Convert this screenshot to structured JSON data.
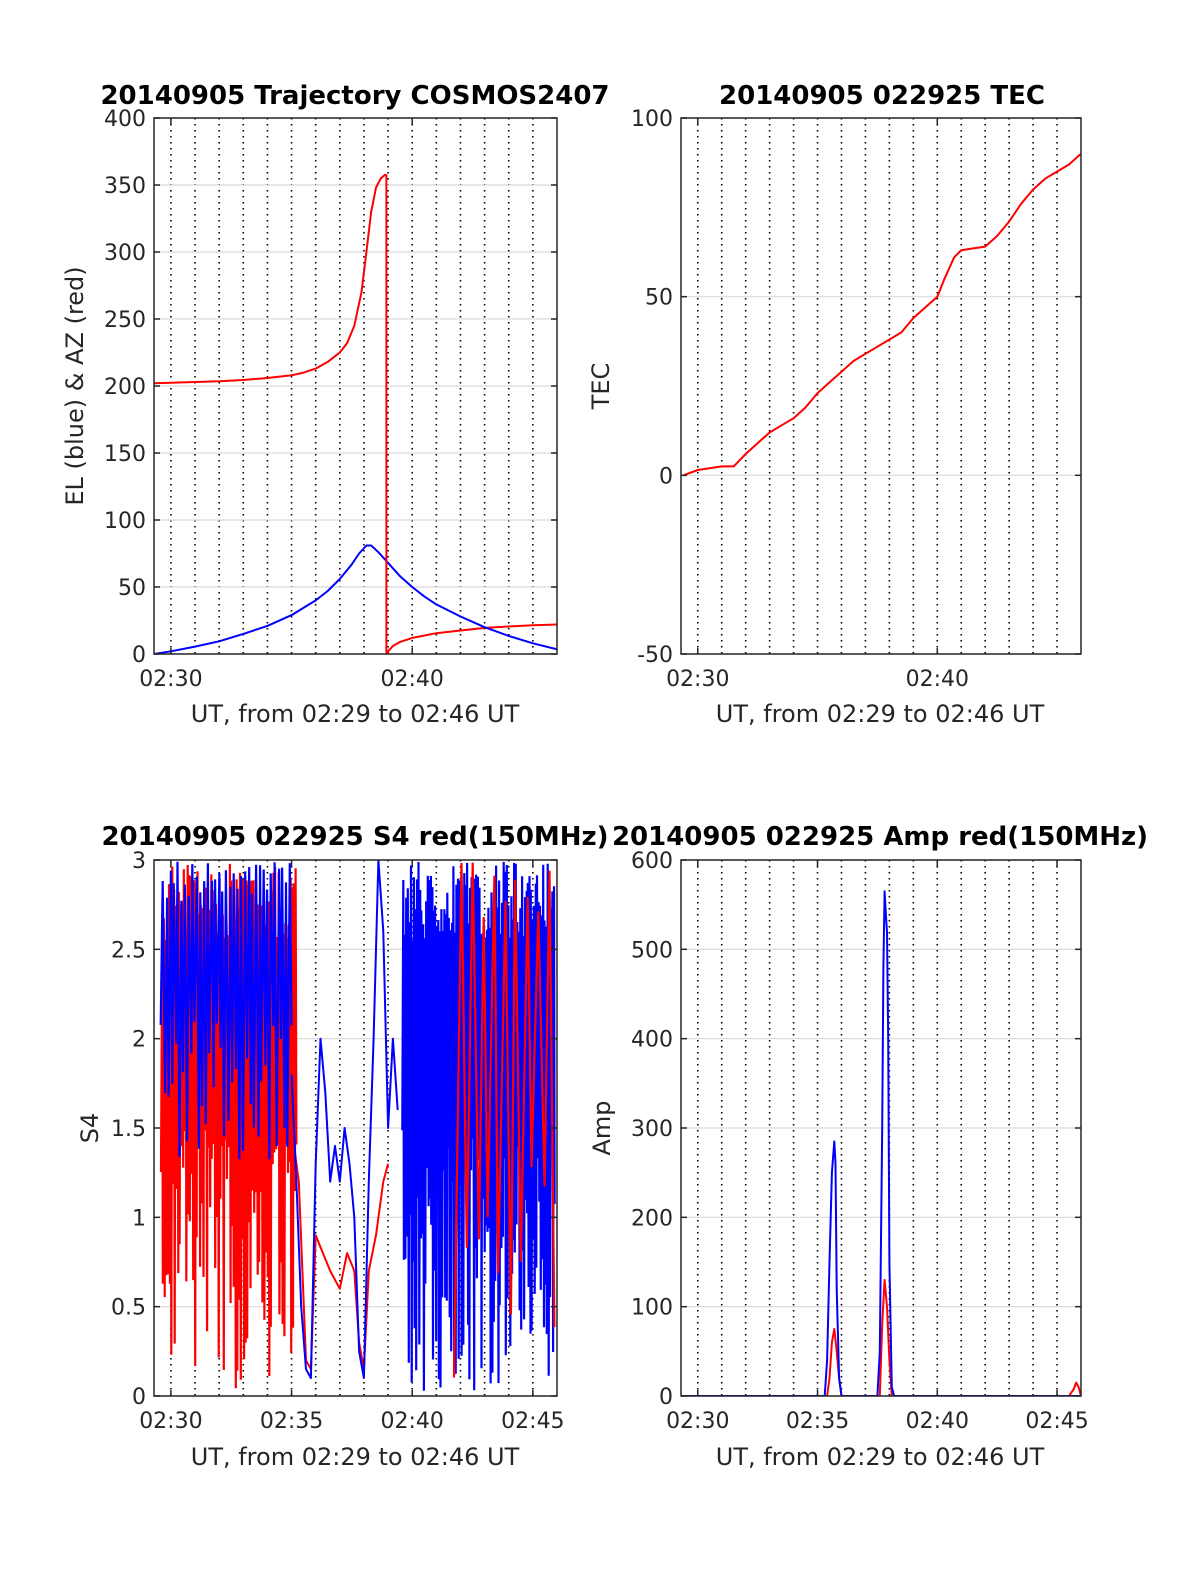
{
  "colors": {
    "el": "#0000ff",
    "az": "#ff0000",
    "grid": "#d9d9d9",
    "axis": "#262626"
  },
  "chart_data": [
    {
      "type": "line",
      "title": "20140905 Trajectory COSMOS2407",
      "xlabel": "UT, from 02:29 to 02:46 UT",
      "ylabel": "EL (blue) & AZ (red)",
      "xlim": [
        29.3,
        46.0
      ],
      "ylim": [
        0,
        400
      ],
      "xtick_values": [
        30,
        40
      ],
      "xtick_labels": [
        "02:30",
        "02:40"
      ],
      "ytick_values": [
        0,
        50,
        100,
        150,
        200,
        250,
        300,
        350,
        400
      ],
      "ytick_labels": [
        "0",
        "50",
        "100",
        "150",
        "200",
        "250",
        "300",
        "350",
        "400"
      ],
      "minor_grid_x": [
        30,
        31,
        32,
        33,
        34,
        35,
        36,
        37,
        38,
        39,
        40,
        41,
        42,
        43,
        44,
        45
      ],
      "series": [
        {
          "color": "#ff0000",
          "segments": [
            [
              [
                29.3,
                202
              ],
              [
                30,
                202.5
              ],
              [
                31,
                203
              ],
              [
                32,
                203.5
              ],
              [
                33,
                204.5
              ],
              [
                34,
                206
              ],
              [
                35,
                208
              ],
              [
                35.5,
                210
              ],
              [
                36,
                213
              ],
              [
                36.5,
                218
              ],
              [
                37,
                225
              ],
              [
                37.3,
                232
              ],
              [
                37.6,
                245
              ],
              [
                37.9,
                270
              ],
              [
                38.1,
                300
              ],
              [
                38.3,
                330
              ],
              [
                38.5,
                348
              ],
              [
                38.7,
                355
              ],
              [
                38.9,
                358
              ]
            ],
            [
              [
                38.95,
                0
              ],
              [
                39.0,
                2
              ],
              [
                39.2,
                6
              ],
              [
                39.5,
                9
              ],
              [
                40,
                12
              ],
              [
                41,
                15.5
              ],
              [
                42,
                17.5
              ],
              [
                43,
                19.5
              ],
              [
                44,
                20.5
              ],
              [
                45,
                21.5
              ],
              [
                46,
                22
              ]
            ]
          ]
        },
        {
          "color": "#0000ff",
          "segments": [
            [
              [
                29.3,
                0
              ],
              [
                30,
                2
              ],
              [
                31,
                5.5
              ],
              [
                32,
                9.5
              ],
              [
                33,
                15
              ],
              [
                34,
                21
              ],
              [
                35,
                29
              ],
              [
                36,
                40
              ],
              [
                36.5,
                47
              ],
              [
                37,
                56
              ],
              [
                37.5,
                67
              ],
              [
                37.8,
                75
              ],
              [
                38.1,
                81
              ],
              [
                38.3,
                81
              ],
              [
                38.6,
                76
              ],
              [
                39,
                68
              ],
              [
                39.5,
                58
              ],
              [
                40,
                50
              ],
              [
                40.5,
                43
              ],
              [
                41,
                37
              ],
              [
                42,
                28
              ],
              [
                43,
                20
              ],
              [
                44,
                13.5
              ],
              [
                45,
                8
              ],
              [
                46,
                3.5
              ]
            ]
          ]
        }
      ]
    },
    {
      "type": "line",
      "title": "20140905 022925 TEC",
      "xlabel": "UT, from 02:29 to 02:46 UT",
      "ylabel": "TEC",
      "xlim": [
        29.3,
        46.0
      ],
      "ylim": [
        -50,
        100
      ],
      "xtick_values": [
        30,
        40
      ],
      "xtick_labels": [
        "02:30",
        "02:40"
      ],
      "ytick_values": [
        -50,
        0,
        50,
        100
      ],
      "ytick_labels": [
        "-50",
        "0",
        "50",
        "100"
      ],
      "minor_grid_x": [
        30,
        31,
        32,
        33,
        34,
        35,
        36,
        37,
        38,
        39,
        40,
        41,
        42,
        43,
        44,
        45
      ],
      "series": [
        {
          "color": "#ff0000",
          "segments": [
            [
              [
                29.4,
                0
              ],
              [
                30,
                1.5
              ],
              [
                31,
                2.5
              ],
              [
                31.5,
                2.5
              ],
              [
                32,
                6
              ],
              [
                32.5,
                9
              ],
              [
                33,
                12
              ],
              [
                33.5,
                14
              ],
              [
                34,
                16
              ],
              [
                34.5,
                19
              ],
              [
                35,
                23
              ],
              [
                35.5,
                26
              ],
              [
                36,
                29
              ],
              [
                36.5,
                32
              ],
              [
                37,
                34
              ],
              [
                37.5,
                36
              ],
              [
                38,
                38
              ],
              [
                38.5,
                40
              ],
              [
                39,
                44
              ],
              [
                39.5,
                47
              ],
              [
                40,
                50
              ],
              [
                40.3,
                55
              ],
              [
                40.7,
                61
              ],
              [
                41,
                63
              ],
              [
                41.5,
                63.5
              ],
              [
                42,
                64
              ],
              [
                42.5,
                67
              ],
              [
                43,
                71
              ],
              [
                43.5,
                76
              ],
              [
                44,
                80
              ],
              [
                44.5,
                83
              ],
              [
                45,
                85
              ],
              [
                45.5,
                87
              ],
              [
                46,
                90
              ]
            ]
          ]
        }
      ]
    },
    {
      "type": "line",
      "title": "20140905 022925 S4 red(150MHz)",
      "xlabel": "UT, from 02:29 to 02:46 UT",
      "ylabel": "S4",
      "xlim": [
        29.3,
        46.0
      ],
      "ylim": [
        0,
        3
      ],
      "xtick_values": [
        30,
        35,
        40,
        45
      ],
      "xtick_labels": [
        "02:30",
        "02:35",
        "02:40",
        "02:45"
      ],
      "ytick_values": [
        0,
        0.5,
        1,
        1.5,
        2,
        2.5,
        3
      ],
      "ytick_labels": [
        "0",
        "0.5",
        "1",
        "1.5",
        "2",
        "2.5",
        "3"
      ],
      "minor_grid_x": [
        30,
        31,
        32,
        33,
        34,
        35,
        36,
        37,
        38,
        39,
        40,
        41,
        42,
        43,
        44,
        45
      ],
      "noise_regions": [
        {
          "color": "#ff0000",
          "x0": 29.6,
          "x1": 35.2,
          "ymin": 0,
          "ymax": 3,
          "count": 160
        },
        {
          "color": "#0000ff",
          "x0": 29.6,
          "x1": 35.0,
          "ymin": 1.3,
          "ymax": 3,
          "count": 70
        },
        {
          "color": "#0000ff",
          "x0": 39.6,
          "x1": 45.9,
          "ymin": 0,
          "ymax": 3,
          "count": 200
        },
        {
          "color": "#ff0000",
          "x0": 41.8,
          "x1": 45.9,
          "ymin": 0,
          "ymax": 3,
          "count": 18
        }
      ],
      "series": [
        {
          "color": "#ff0000",
          "segments": [
            [
              [
                35.0,
                1.5
              ],
              [
                35.3,
                1.2
              ],
              [
                35.6,
                0.2
              ],
              [
                35.8,
                0.15
              ],
              [
                36.0,
                0.9
              ],
              [
                36.3,
                0.8
              ],
              [
                36.6,
                0.7
              ],
              [
                37.0,
                0.6
              ],
              [
                37.3,
                0.8
              ],
              [
                37.6,
                0.7
              ],
              [
                37.8,
                0.3
              ],
              [
                38.0,
                0.15
              ],
              [
                38.2,
                0.7
              ],
              [
                38.5,
                0.9
              ],
              [
                38.8,
                1.2
              ],
              [
                39.0,
                1.3
              ]
            ]
          ]
        },
        {
          "color": "#0000ff",
          "segments": [
            [
              [
                35.0,
                1.8
              ],
              [
                35.2,
                1.2
              ],
              [
                35.4,
                0.5
              ],
              [
                35.6,
                0.15
              ],
              [
                35.8,
                0.1
              ],
              [
                36.0,
                1.3
              ],
              [
                36.2,
                2.0
              ],
              [
                36.4,
                1.7
              ],
              [
                36.6,
                1.2
              ],
              [
                36.8,
                1.4
              ],
              [
                37.0,
                1.2
              ],
              [
                37.2,
                1.5
              ],
              [
                37.4,
                1.3
              ],
              [
                37.6,
                1.0
              ],
              [
                37.8,
                0.25
              ],
              [
                38.0,
                0.1
              ],
              [
                38.2,
                1.2
              ],
              [
                38.4,
                2.0
              ],
              [
                38.6,
                3.0
              ],
              [
                38.8,
                2.6
              ],
              [
                39.0,
                1.5
              ],
              [
                39.2,
                2.0
              ],
              [
                39.4,
                1.6
              ]
            ]
          ]
        }
      ]
    },
    {
      "type": "line",
      "title": "20140905 022925 Amp red(150MHz)",
      "xlabel": "UT, from 02:29 to 02:46 UT",
      "ylabel": "Amp",
      "xlim": [
        29.3,
        46.0
      ],
      "ylim": [
        0,
        600
      ],
      "xtick_values": [
        30,
        35,
        40,
        45
      ],
      "xtick_labels": [
        "02:30",
        "02:35",
        "02:40",
        "02:45"
      ],
      "ytick_values": [
        0,
        100,
        200,
        300,
        400,
        500,
        600
      ],
      "ytick_labels": [
        "0",
        "100",
        "200",
        "300",
        "400",
        "500",
        "600"
      ],
      "minor_grid_x": [
        30,
        31,
        32,
        33,
        34,
        35,
        36,
        37,
        38,
        39,
        40,
        41,
        42,
        43,
        44,
        45
      ],
      "series": [
        {
          "color": "#ff0000",
          "segments": [
            [
              [
                29.3,
                0
              ],
              [
                35.4,
                0
              ],
              [
                35.5,
                20
              ],
              [
                35.6,
                60
              ],
              [
                35.7,
                75
              ],
              [
                35.8,
                50
              ],
              [
                35.9,
                20
              ],
              [
                36.0,
                0
              ],
              [
                37.6,
                0
              ],
              [
                37.7,
                80
              ],
              [
                37.8,
                130
              ],
              [
                37.9,
                100
              ],
              [
                38.0,
                40
              ],
              [
                38.1,
                0
              ],
              [
                45.5,
                0
              ],
              [
                45.7,
                8
              ],
              [
                45.8,
                15
              ],
              [
                45.9,
                10
              ],
              [
                46,
                0
              ]
            ]
          ]
        },
        {
          "color": "#0000ff",
          "segments": [
            [
              [
                29.3,
                0
              ],
              [
                35.3,
                0
              ],
              [
                35.4,
                40
              ],
              [
                35.5,
                150
              ],
              [
                35.6,
                250
              ],
              [
                35.7,
                285
              ],
              [
                35.75,
                260
              ],
              [
                35.8,
                120
              ],
              [
                35.9,
                20
              ],
              [
                36.0,
                0
              ],
              [
                37.5,
                0
              ],
              [
                37.6,
                50
              ],
              [
                37.7,
                300
              ],
              [
                37.75,
                480
              ],
              [
                37.8,
                565
              ],
              [
                37.85,
                540
              ],
              [
                37.9,
                520
              ],
              [
                37.95,
                400
              ],
              [
                38.0,
                150
              ],
              [
                38.1,
                10
              ],
              [
                38.2,
                0
              ],
              [
                46,
                0
              ]
            ]
          ]
        }
      ]
    }
  ]
}
